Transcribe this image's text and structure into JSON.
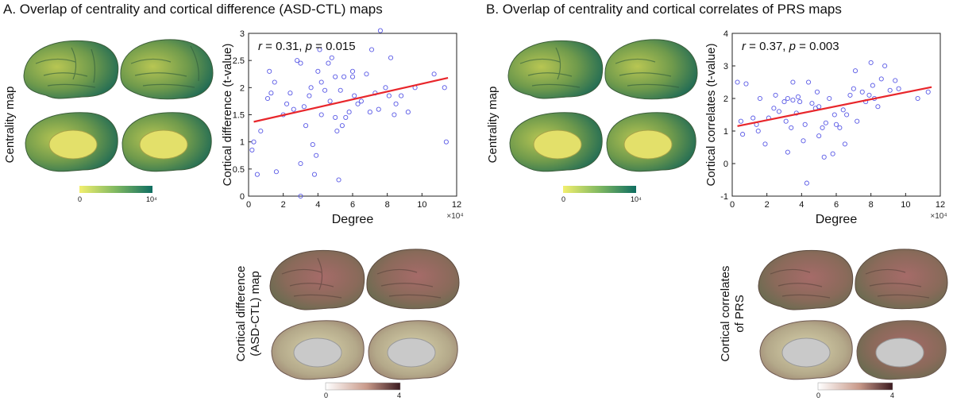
{
  "panel_a": {
    "title": "A. Overlap of centrality and cortical difference (ASD-CTL) maps",
    "centrality_label": "Centrality map",
    "centrality_cbar": {
      "min": "0",
      "max": "10⁴",
      "colors": [
        "#f2ef6e",
        "#7fb861",
        "#0f6e61"
      ]
    },
    "cortical_label_lines": [
      "Cortical difference",
      "(ASD-CTL) map"
    ],
    "cortical_cbar": {
      "min": "0",
      "max": "4",
      "colors": [
        "#ffffff",
        "#c99a8a",
        "#3b1a1f"
      ]
    }
  },
  "panel_b": {
    "title": "B. Overlap of centrality and cortical correlates of PRS maps",
    "centrality_label": "Centrality map",
    "centrality_cbar": {
      "min": "0",
      "max": "10⁴",
      "colors": [
        "#f2ef6e",
        "#7fb861",
        "#0f6e61"
      ]
    },
    "cortical_label_lines": [
      "Cortical correlates",
      "of PRS"
    ],
    "cortical_cbar": {
      "min": "0",
      "max": "4",
      "colors": [
        "#ffffff",
        "#c99a8a",
        "#3b1a1f"
      ]
    }
  },
  "colors": {
    "points": "#5a5ae6",
    "fit_line": "#e8262b"
  },
  "chart_data": [
    {
      "type": "scatter",
      "xlabel": "Degree",
      "ylabel": "Cortical difference (t-value)",
      "x_multiplier": "×10⁴",
      "annotation": {
        "r": "0.31",
        "p": "0.015"
      },
      "xlim": [
        0,
        12
      ],
      "ylim": [
        0,
        3
      ],
      "xticks": [
        0,
        2,
        4,
        6,
        8,
        10,
        12
      ],
      "yticks": [
        0,
        0.5,
        1,
        1.5,
        2,
        2.5,
        3
      ],
      "fit_line": {
        "x": [
          0.3,
          11.5
        ],
        "y": [
          1.37,
          2.18
        ]
      },
      "points": [
        [
          0.2,
          0.85
        ],
        [
          0.3,
          1.0
        ],
        [
          0.5,
          0.4
        ],
        [
          0.7,
          1.2
        ],
        [
          1.1,
          1.8
        ],
        [
          1.2,
          2.3
        ],
        [
          1.3,
          1.9
        ],
        [
          1.5,
          2.1
        ],
        [
          1.6,
          0.45
        ],
        [
          2.0,
          1.5
        ],
        [
          2.2,
          1.7
        ],
        [
          2.4,
          1.9
        ],
        [
          2.6,
          1.6
        ],
        [
          2.8,
          2.5
        ],
        [
          3.0,
          0.6
        ],
        [
          3.0,
          0.0
        ],
        [
          3.0,
          2.45
        ],
        [
          3.2,
          1.65
        ],
        [
          3.3,
          1.3
        ],
        [
          3.5,
          1.85
        ],
        [
          3.6,
          2.0
        ],
        [
          3.7,
          0.95
        ],
        [
          3.8,
          0.4
        ],
        [
          3.9,
          0.75
        ],
        [
          4.0,
          2.3
        ],
        [
          4.1,
          2.7
        ],
        [
          4.2,
          2.1
        ],
        [
          4.2,
          1.5
        ],
        [
          4.4,
          1.95
        ],
        [
          4.6,
          2.45
        ],
        [
          4.7,
          1.75
        ],
        [
          4.8,
          2.55
        ],
        [
          5.0,
          2.2
        ],
        [
          5.0,
          1.45
        ],
        [
          5.1,
          1.2
        ],
        [
          5.2,
          0.3
        ],
        [
          5.3,
          1.95
        ],
        [
          5.4,
          1.3
        ],
        [
          5.5,
          2.2
        ],
        [
          5.6,
          1.45
        ],
        [
          5.8,
          1.55
        ],
        [
          6.0,
          2.3
        ],
        [
          6.0,
          2.2
        ],
        [
          6.1,
          1.85
        ],
        [
          6.3,
          1.7
        ],
        [
          6.5,
          1.75
        ],
        [
          6.8,
          2.25
        ],
        [
          7.0,
          1.55
        ],
        [
          7.1,
          2.7
        ],
        [
          7.3,
          1.9
        ],
        [
          7.5,
          1.6
        ],
        [
          7.6,
          3.05
        ],
        [
          7.9,
          2.0
        ],
        [
          8.1,
          1.85
        ],
        [
          8.2,
          2.55
        ],
        [
          8.4,
          1.5
        ],
        [
          8.5,
          1.7
        ],
        [
          8.8,
          1.85
        ],
        [
          9.2,
          1.55
        ],
        [
          9.6,
          2.0
        ],
        [
          10.7,
          2.25
        ],
        [
          11.3,
          2.0
        ],
        [
          11.4,
          1.0
        ]
      ]
    },
    {
      "type": "scatter",
      "xlabel": "Degree",
      "ylabel": "Cortical correlates (t-value)",
      "x_multiplier": "×10⁴",
      "annotation": {
        "r": "0.37",
        "p": "0.003"
      },
      "xlim": [
        0,
        12
      ],
      "ylim": [
        -1,
        4
      ],
      "xticks": [
        0,
        2,
        4,
        6,
        8,
        10,
        12
      ],
      "yticks": [
        -1,
        0,
        1,
        2,
        3,
        4
      ],
      "fit_line": {
        "x": [
          0.3,
          11.5
        ],
        "y": [
          1.15,
          2.35
        ]
      },
      "points": [
        [
          0.3,
          2.5
        ],
        [
          0.5,
          1.3
        ],
        [
          0.6,
          0.9
        ],
        [
          0.8,
          2.45
        ],
        [
          1.2,
          1.4
        ],
        [
          1.4,
          1.2
        ],
        [
          1.5,
          1.0
        ],
        [
          1.6,
          2.0
        ],
        [
          1.9,
          0.6
        ],
        [
          2.1,
          1.4
        ],
        [
          2.4,
          1.7
        ],
        [
          2.5,
          2.1
        ],
        [
          2.7,
          1.6
        ],
        [
          3.0,
          1.9
        ],
        [
          3.1,
          1.3
        ],
        [
          3.2,
          2.0
        ],
        [
          3.2,
          0.35
        ],
        [
          3.4,
          1.1
        ],
        [
          3.5,
          1.95
        ],
        [
          3.5,
          2.5
        ],
        [
          3.7,
          1.55
        ],
        [
          3.8,
          2.05
        ],
        [
          3.9,
          1.9
        ],
        [
          4.1,
          0.7
        ],
        [
          4.2,
          1.2
        ],
        [
          4.3,
          -0.6
        ],
        [
          4.4,
          2.5
        ],
        [
          4.6,
          1.85
        ],
        [
          4.8,
          1.7
        ],
        [
          4.9,
          2.2
        ],
        [
          5.0,
          1.75
        ],
        [
          5.0,
          0.85
        ],
        [
          5.2,
          1.1
        ],
        [
          5.3,
          0.2
        ],
        [
          5.4,
          1.25
        ],
        [
          5.6,
          2.0
        ],
        [
          5.8,
          0.3
        ],
        [
          5.9,
          1.5
        ],
        [
          6.0,
          1.2
        ],
        [
          6.2,
          1.1
        ],
        [
          6.4,
          1.65
        ],
        [
          6.5,
          0.6
        ],
        [
          6.6,
          1.5
        ],
        [
          6.8,
          2.1
        ],
        [
          7.0,
          2.3
        ],
        [
          7.1,
          2.85
        ],
        [
          7.2,
          1.3
        ],
        [
          7.5,
          2.2
        ],
        [
          7.7,
          1.9
        ],
        [
          7.9,
          2.1
        ],
        [
          8.0,
          3.1
        ],
        [
          8.1,
          2.4
        ],
        [
          8.2,
          2.0
        ],
        [
          8.4,
          1.75
        ],
        [
          8.6,
          2.6
        ],
        [
          8.8,
          3.0
        ],
        [
          9.1,
          2.25
        ],
        [
          9.4,
          2.55
        ],
        [
          9.6,
          2.3
        ],
        [
          10.7,
          2.0
        ],
        [
          11.3,
          2.2
        ]
      ]
    }
  ]
}
